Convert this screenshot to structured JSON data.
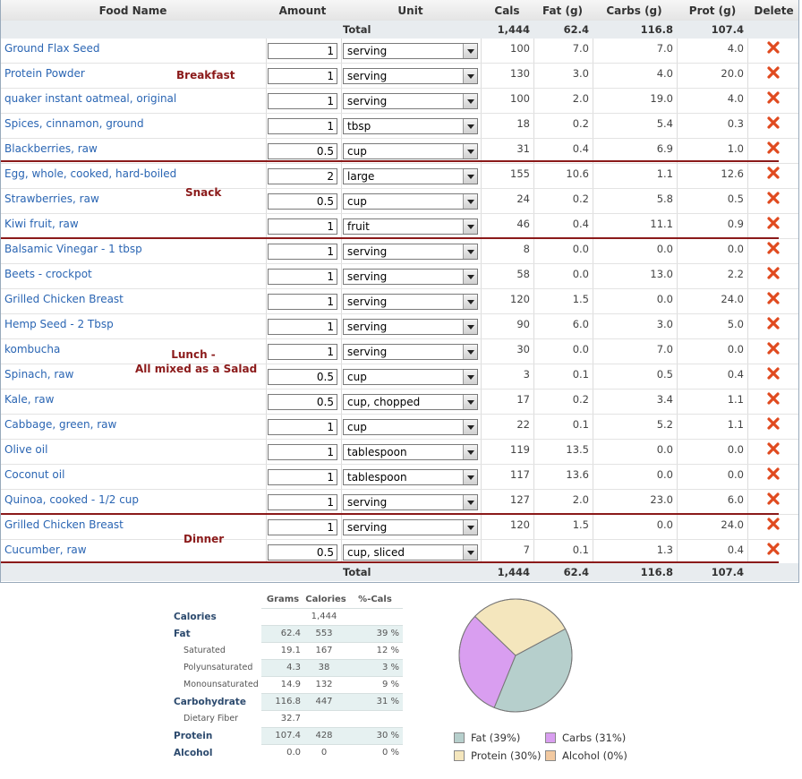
{
  "columns": {
    "food": "Food Name",
    "amount": "Amount",
    "unit": "Unit",
    "cals": "Cals",
    "fat": "Fat (g)",
    "carbs": "Carbs (g)",
    "prot": "Prot (g)",
    "del": "Delete"
  },
  "totals": {
    "label": "Total",
    "cals": "1,444",
    "fat": "62.4",
    "carbs": "116.8",
    "prot": "107.4"
  },
  "meals": {
    "breakfast": "Breakfast",
    "snack": "Snack",
    "lunch_1": "Lunch -",
    "lunch_2": "All mixed as a Salad",
    "dinner": "Dinner"
  },
  "foods": [
    {
      "name": "Ground Flax Seed",
      "amount": "1",
      "unit": "serving",
      "cals": "100",
      "fat": "7.0",
      "carbs": "7.0",
      "prot": "4.0"
    },
    {
      "name": "Protein Powder",
      "amount": "1",
      "unit": "serving",
      "cals": "130",
      "fat": "3.0",
      "carbs": "4.0",
      "prot": "20.0"
    },
    {
      "name": "quaker instant oatmeal, original",
      "amount": "1",
      "unit": "serving",
      "cals": "100",
      "fat": "2.0",
      "carbs": "19.0",
      "prot": "4.0"
    },
    {
      "name": "Spices, cinnamon, ground",
      "amount": "1",
      "unit": "tbsp",
      "cals": "18",
      "fat": "0.2",
      "carbs": "5.4",
      "prot": "0.3"
    },
    {
      "name": "Blackberries, raw",
      "amount": "0.5",
      "unit": "cup",
      "cals": "31",
      "fat": "0.4",
      "carbs": "6.9",
      "prot": "1.0"
    },
    {
      "name": "Egg, whole, cooked, hard-boiled",
      "amount": "2",
      "unit": "large",
      "cals": "155",
      "fat": "10.6",
      "carbs": "1.1",
      "prot": "12.6"
    },
    {
      "name": "Strawberries, raw",
      "amount": "0.5",
      "unit": "cup",
      "cals": "24",
      "fat": "0.2",
      "carbs": "5.8",
      "prot": "0.5"
    },
    {
      "name": "Kiwi fruit, raw",
      "amount": "1",
      "unit": "fruit",
      "cals": "46",
      "fat": "0.4",
      "carbs": "11.1",
      "prot": "0.9"
    },
    {
      "name": "Balsamic Vinegar - 1 tbsp",
      "amount": "1",
      "unit": "serving",
      "cals": "8",
      "fat": "0.0",
      "carbs": "0.0",
      "prot": "0.0"
    },
    {
      "name": "Beets - crockpot",
      "amount": "1",
      "unit": "serving",
      "cals": "58",
      "fat": "0.0",
      "carbs": "13.0",
      "prot": "2.2"
    },
    {
      "name": "Grilled Chicken Breast",
      "amount": "1",
      "unit": "serving",
      "cals": "120",
      "fat": "1.5",
      "carbs": "0.0",
      "prot": "24.0"
    },
    {
      "name": "Hemp Seed - 2 Tbsp",
      "amount": "1",
      "unit": "serving",
      "cals": "90",
      "fat": "6.0",
      "carbs": "3.0",
      "prot": "5.0"
    },
    {
      "name": "kombucha",
      "amount": "1",
      "unit": "serving",
      "cals": "30",
      "fat": "0.0",
      "carbs": "7.0",
      "prot": "0.0"
    },
    {
      "name": "Spinach, raw",
      "amount": "0.5",
      "unit": "cup",
      "cals": "3",
      "fat": "0.1",
      "carbs": "0.5",
      "prot": "0.4"
    },
    {
      "name": "Kale, raw",
      "amount": "0.5",
      "unit": "cup, chopped",
      "cals": "17",
      "fat": "0.2",
      "carbs": "3.4",
      "prot": "1.1"
    },
    {
      "name": "Cabbage, green, raw",
      "amount": "1",
      "unit": "cup",
      "cals": "22",
      "fat": "0.1",
      "carbs": "5.2",
      "prot": "1.1"
    },
    {
      "name": "Olive oil",
      "amount": "1",
      "unit": "tablespoon",
      "cals": "119",
      "fat": "13.5",
      "carbs": "0.0",
      "prot": "0.0"
    },
    {
      "name": "Coconut oil",
      "amount": "1",
      "unit": "tablespoon",
      "cals": "117",
      "fat": "13.6",
      "carbs": "0.0",
      "prot": "0.0"
    },
    {
      "name": "Quinoa, cooked - 1/2 cup",
      "amount": "1",
      "unit": "serving",
      "cals": "127",
      "fat": "2.0",
      "carbs": "23.0",
      "prot": "6.0"
    },
    {
      "name": "Grilled Chicken Breast",
      "amount": "1",
      "unit": "serving",
      "cals": "120",
      "fat": "1.5",
      "carbs": "0.0",
      "prot": "24.0"
    },
    {
      "name": "Cucumber, raw",
      "amount": "0.5",
      "unit": "cup, sliced",
      "cals": "7",
      "fat": "0.1",
      "carbs": "1.3",
      "prot": "0.4"
    }
  ],
  "nutrition": {
    "headers": [
      "Grams",
      "Calories",
      "%-Cals"
    ],
    "rows": [
      {
        "label": "Calories",
        "grams": "",
        "cals": "1,444",
        "pct": "",
        "sub": false
      },
      {
        "label": "Fat",
        "grams": "62.4",
        "cals": "553",
        "pct": "39 %",
        "sub": false
      },
      {
        "label": "Saturated",
        "grams": "19.1",
        "cals": "167",
        "pct": "12 %",
        "sub": true
      },
      {
        "label": "Polyunsaturated",
        "grams": "4.3",
        "cals": "38",
        "pct": "3 %",
        "sub": true
      },
      {
        "label": "Monounsaturated",
        "grams": "14.9",
        "cals": "132",
        "pct": "9 %",
        "sub": true
      },
      {
        "label": "Carbohydrate",
        "grams": "116.8",
        "cals": "447",
        "pct": "31 %",
        "sub": false
      },
      {
        "label": "Dietary Fiber",
        "grams": "32.7",
        "cals": "",
        "pct": "",
        "sub": true
      },
      {
        "label": "Protein",
        "grams": "107.4",
        "cals": "428",
        "pct": "30 %",
        "sub": false
      },
      {
        "label": "Alcohol",
        "grams": "0.0",
        "cals": "0",
        "pct": "0 %",
        "sub": false
      }
    ]
  },
  "chart_data": {
    "type": "pie",
    "categories": [
      "Fat",
      "Carbs",
      "Protein",
      "Alcohol"
    ],
    "values": [
      39,
      31,
      30,
      0
    ],
    "colors": [
      "#b6cfcc",
      "#d99ef0",
      "#f4e6bd",
      "#f2c9a0"
    ],
    "legend": [
      "Fat (39%)",
      "Carbs (31%)",
      "Protein (30%)",
      "Alcohol (0%)"
    ]
  },
  "icons": {
    "delete": "delete-x-icon",
    "dropdown": "chevron-down-icon"
  }
}
